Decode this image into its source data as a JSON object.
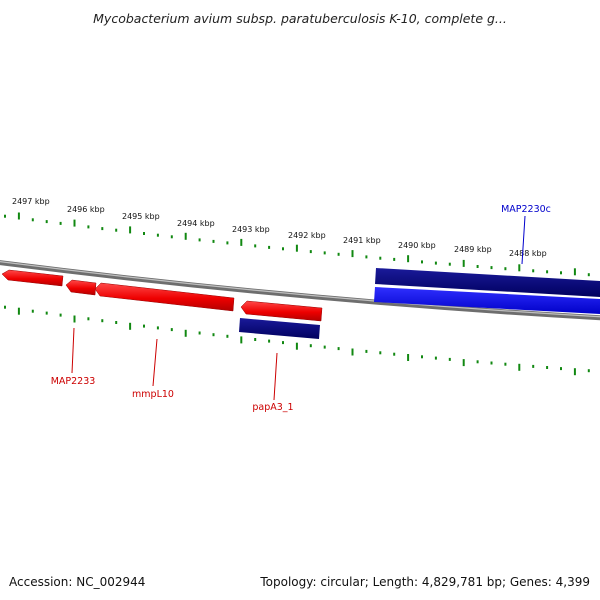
{
  "title": "Mycobacterium avium subsp. paratuberculosis K-10, complete g...",
  "footer": {
    "accession": "Accession: NC_002944",
    "summary": "Topology: circular; Length: 4,829,781 bp; Genes: 4,399"
  },
  "colors": {
    "forward_strand": "#ff0000",
    "reverse_strand_dark": "#00007a",
    "reverse_strand_light": "#0000f0",
    "backbone": "#7f7f7f",
    "ticks": "#118811",
    "forward_label": "#cc0000",
    "reverse_label": "#0000cc"
  },
  "scale_labels": [
    "2497 kbp",
    "2496 kbp",
    "2495 kbp",
    "2494 kbp",
    "2493 kbp",
    "2492 kbp",
    "2491 kbp",
    "2490 kbp",
    "2489 kbp",
    "2488 kbp"
  ],
  "gene_labels": [
    {
      "name": "MAP2233",
      "strand": "forward"
    },
    {
      "name": "mmpL10",
      "strand": "forward"
    },
    {
      "name": "papA3_1",
      "strand": "forward"
    },
    {
      "name": "MAP2230c",
      "strand": "reverse"
    }
  ]
}
